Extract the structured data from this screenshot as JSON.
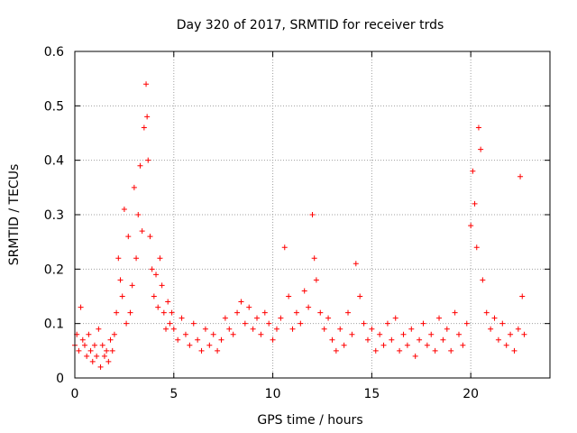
{
  "chart_data": {
    "type": "scatter",
    "title": "Day 320 of 2017, SRMTID for receiver trds",
    "xlabel": "GPS time / hours",
    "ylabel": "SRMTID / TECUs",
    "xlim": [
      0,
      24
    ],
    "ylim": [
      0,
      0.6
    ],
    "xticks": [
      0,
      5,
      10,
      15,
      20
    ],
    "yticks": [
      0,
      0.1,
      0.2,
      0.3,
      0.4,
      0.5,
      0.6
    ],
    "xtick_labels": [
      "0",
      "5",
      "10",
      "15",
      "20"
    ],
    "ytick_labels": [
      "0",
      "0.1",
      "0.2",
      "0.3",
      "0.4",
      "0.5",
      "0.6"
    ],
    "grid": true,
    "marker": "+",
    "color": "#ff0000",
    "series": [
      {
        "name": "trds",
        "x": [
          0.0,
          0.1,
          0.2,
          0.3,
          0.4,
          0.5,
          0.6,
          0.7,
          0.8,
          0.9,
          1.0,
          1.1,
          1.2,
          1.3,
          1.4,
          1.5,
          1.6,
          1.7,
          1.8,
          1.9,
          2.0,
          2.1,
          2.2,
          2.3,
          2.4,
          2.5,
          2.6,
          2.7,
          2.8,
          2.9,
          3.0,
          3.1,
          3.2,
          3.3,
          3.4,
          3.5,
          3.6,
          3.65,
          3.7,
          3.8,
          3.9,
          4.0,
          4.1,
          4.2,
          4.3,
          4.4,
          4.5,
          4.6,
          4.7,
          4.8,
          4.9,
          5.0,
          5.2,
          5.4,
          5.6,
          5.8,
          6.0,
          6.2,
          6.4,
          6.6,
          6.8,
          7.0,
          7.2,
          7.4,
          7.6,
          7.8,
          8.0,
          8.2,
          8.4,
          8.6,
          8.8,
          9.0,
          9.2,
          9.4,
          9.6,
          9.8,
          10.0,
          10.2,
          10.4,
          10.6,
          10.8,
          11.0,
          11.2,
          11.4,
          11.6,
          11.8,
          12.0,
          12.1,
          12.2,
          12.4,
          12.6,
          12.8,
          13.0,
          13.2,
          13.4,
          13.6,
          13.8,
          14.0,
          14.2,
          14.4,
          14.6,
          14.8,
          15.0,
          15.2,
          15.4,
          15.6,
          15.8,
          16.0,
          16.2,
          16.4,
          16.6,
          16.8,
          17.0,
          17.2,
          17.4,
          17.6,
          17.8,
          18.0,
          18.2,
          18.4,
          18.6,
          18.8,
          19.0,
          19.2,
          19.4,
          19.6,
          19.8,
          20.0,
          20.1,
          20.2,
          20.3,
          20.4,
          20.5,
          20.6,
          20.8,
          21.0,
          21.2,
          21.4,
          21.6,
          21.8,
          22.0,
          22.2,
          22.4,
          22.5,
          22.6,
          22.7
        ],
        "y": [
          0.06,
          0.08,
          0.05,
          0.13,
          0.07,
          0.06,
          0.04,
          0.08,
          0.05,
          0.03,
          0.06,
          0.04,
          0.09,
          0.02,
          0.06,
          0.04,
          0.05,
          0.03,
          0.07,
          0.05,
          0.08,
          0.12,
          0.22,
          0.18,
          0.15,
          0.31,
          0.1,
          0.26,
          0.12,
          0.17,
          0.35,
          0.22,
          0.3,
          0.39,
          0.27,
          0.46,
          0.54,
          0.48,
          0.4,
          0.26,
          0.2,
          0.15,
          0.19,
          0.13,
          0.22,
          0.17,
          0.12,
          0.09,
          0.14,
          0.1,
          0.12,
          0.09,
          0.07,
          0.11,
          0.08,
          0.06,
          0.1,
          0.07,
          0.05,
          0.09,
          0.06,
          0.08,
          0.05,
          0.07,
          0.11,
          0.09,
          0.08,
          0.12,
          0.14,
          0.1,
          0.13,
          0.09,
          0.11,
          0.08,
          0.12,
          0.1,
          0.07,
          0.09,
          0.11,
          0.24,
          0.15,
          0.09,
          0.12,
          0.1,
          0.16,
          0.13,
          0.3,
          0.22,
          0.18,
          0.12,
          0.09,
          0.11,
          0.07,
          0.05,
          0.09,
          0.06,
          0.12,
          0.08,
          0.21,
          0.15,
          0.1,
          0.07,
          0.09,
          0.05,
          0.08,
          0.06,
          0.1,
          0.07,
          0.11,
          0.05,
          0.08,
          0.06,
          0.09,
          0.04,
          0.07,
          0.1,
          0.06,
          0.08,
          0.05,
          0.11,
          0.07,
          0.09,
          0.05,
          0.12,
          0.08,
          0.06,
          0.1,
          0.28,
          0.38,
          0.32,
          0.24,
          0.46,
          0.42,
          0.18,
          0.12,
          0.09,
          0.11,
          0.07,
          0.1,
          0.06,
          0.08,
          0.05,
          0.09,
          0.37,
          0.15,
          0.08
        ]
      }
    ]
  }
}
